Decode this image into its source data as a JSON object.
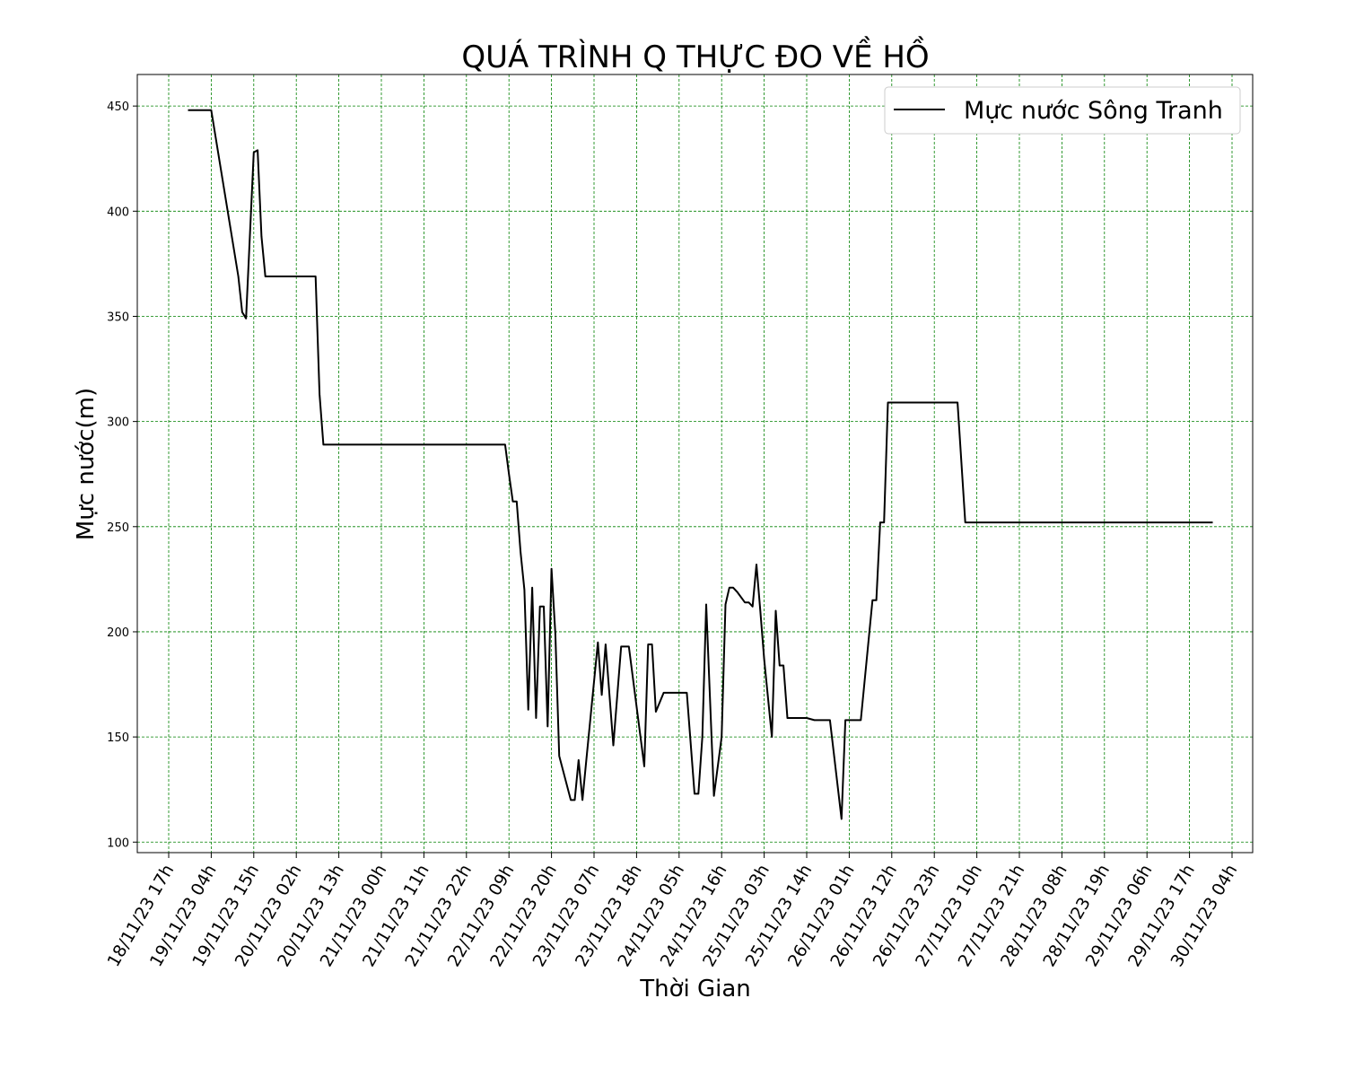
{
  "chart_data": {
    "type": "line",
    "title": "QUÁ TRÌNH Q THỰC ĐO VỀ HỒ",
    "xlabel": "Thời Gian",
    "ylabel": "Mực nước(m)",
    "ylim": [
      95,
      465
    ],
    "yticks": [
      100,
      150,
      200,
      250,
      300,
      350,
      400,
      450
    ],
    "xticks": [
      "18/11/23 17h",
      "19/11/23 04h",
      "19/11/23 15h",
      "20/11/23 02h",
      "20/11/23 13h",
      "21/11/23 00h",
      "21/11/23 11h",
      "21/11/23 22h",
      "22/11/23 09h",
      "22/11/23 20h",
      "23/11/23 07h",
      "23/11/23 18h",
      "24/11/23 05h",
      "24/11/23 16h",
      "25/11/23 03h",
      "25/11/23 14h",
      "26/11/23 01h",
      "26/11/23 12h",
      "26/11/23 23h",
      "27/11/23 10h",
      "27/11/23 21h",
      "28/11/23 08h",
      "28/11/23 19h",
      "29/11/23 06h",
      "29/11/23 17h",
      "30/11/23 04h"
    ],
    "grid": true,
    "grid_color": "#008000",
    "line_color": "#000000",
    "legend_position": "top-right",
    "series": [
      {
        "name": "Mực nước Sông Tranh",
        "x": [
          "18/11/23 22h",
          "19/11/23 01h",
          "19/11/23 04h",
          "19/11/23 11h",
          "19/11/23 12h",
          "19/11/23 13h",
          "19/11/23 15h",
          "19/11/23 16h",
          "19/11/23 17h",
          "19/11/23 18h",
          "20/11/23 07h",
          "20/11/23 08h",
          "20/11/23 09h",
          "22/11/23 08h",
          "22/11/23 09h",
          "22/11/23 10h",
          "22/11/23 11h",
          "22/11/23 12h",
          "22/11/23 13h",
          "22/11/23 14h",
          "22/11/23 15h",
          "22/11/23 16h",
          "22/11/23 17h",
          "22/11/23 18h",
          "22/11/23 19h",
          "22/11/23 20h",
          "22/11/23 21h",
          "22/11/23 22h",
          "23/11/23 01h",
          "23/11/23 02h",
          "23/11/23 03h",
          "23/11/23 04h",
          "23/11/23 05h",
          "23/11/23 08h",
          "23/11/23 09h",
          "23/11/23 10h",
          "23/11/23 12h",
          "23/11/23 14h",
          "23/11/23 16h",
          "23/11/23 20h",
          "23/11/23 21h",
          "23/11/23 22h",
          "23/11/23 23h",
          "24/11/23 01h",
          "24/11/23 02h",
          "24/11/23 07h",
          "24/11/23 09h",
          "24/11/23 10h",
          "24/11/23 11h",
          "24/11/23 12h",
          "24/11/23 14h",
          "24/11/23 16h",
          "24/11/23 17h",
          "24/11/23 18h",
          "24/11/23 19h",
          "24/11/23 20h",
          "24/11/23 22h",
          "24/11/23 23h",
          "25/11/23 00h",
          "25/11/23 01h",
          "25/11/23 02h",
          "25/11/23 03h",
          "25/11/23 05h",
          "25/11/23 06h",
          "25/11/23 07h",
          "25/11/23 08h",
          "25/11/23 09h",
          "25/11/23 10h",
          "25/11/23 11h",
          "25/11/23 14h",
          "25/11/23 16h",
          "25/11/23 19h",
          "25/11/23 20h",
          "25/11/23 23h",
          "25/11/23 24h",
          "26/11/23 01h",
          "26/11/23 02h",
          "26/11/23 04h",
          "26/11/23 07h",
          "26/11/23 08h",
          "26/11/23 09h",
          "26/11/23 10h",
          "26/11/23 11h",
          "26/11/23 12h",
          "26/11/23 13h",
          "26/11/23 16h",
          "26/11/23 20h",
          "26/11/23 21h",
          "27/11/23 04h",
          "27/11/23 05h",
          "27/11/23 07h",
          "27/11/23 08h",
          "27/11/23 10h",
          "27/11/23 12h",
          "29/11/23 23h"
        ],
        "values": [
          448,
          448,
          448,
          369,
          352,
          349,
          428,
          429,
          388,
          369,
          369,
          313,
          289,
          289,
          275,
          262,
          262,
          238,
          220,
          163,
          221,
          159,
          212,
          212,
          155,
          230,
          199,
          141,
          120,
          120,
          139,
          120,
          139,
          195,
          170,
          194,
          146,
          193,
          193,
          136,
          194,
          194,
          162,
          171,
          171,
          171,
          123,
          123,
          150,
          213,
          122,
          150,
          213,
          221,
          221,
          219,
          214,
          214,
          212,
          232,
          210,
          187,
          150,
          210,
          184,
          184,
          159,
          159,
          159,
          159,
          158,
          158,
          158,
          111,
          158,
          158,
          158,
          158,
          215,
          215,
          252,
          252,
          309,
          309,
          309,
          309,
          309,
          309,
          309,
          309,
          252,
          252,
          252,
          252,
          252
        ]
      }
    ]
  }
}
